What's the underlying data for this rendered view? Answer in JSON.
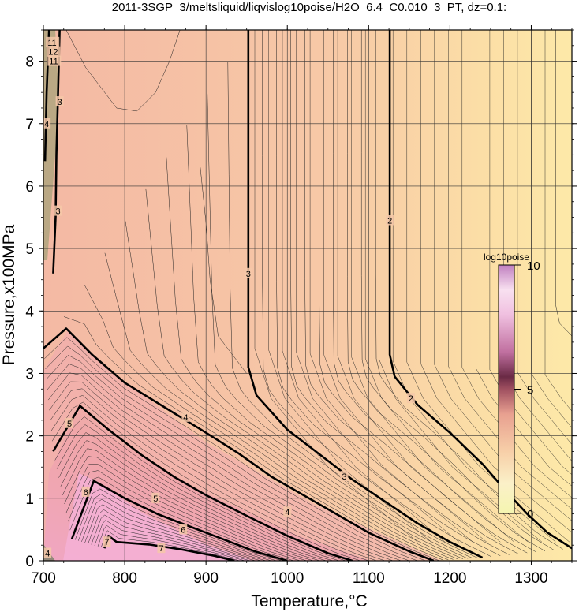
{
  "chart_data": {
    "type": "heatmap",
    "title": "2011-3SGP_3/meltsliquid/liqvislog10poise/H2O_6.4_C0.010_3_PT, dz=0.1:",
    "xlabel": "Temperature,°C",
    "ylabel": "Pressure,x100MPa",
    "xlim": [
      700,
      1350
    ],
    "ylim": [
      0,
      8.5
    ],
    "xticks": [
      700,
      800,
      900,
      1000,
      1100,
      1200,
      1300
    ],
    "yticks": [
      0,
      1,
      2,
      3,
      4,
      5,
      6,
      7,
      8
    ],
    "grid": true,
    "colorbar": {
      "label": "log10poise",
      "range": [
        0,
        10
      ],
      "ticks": [
        0,
        5,
        10
      ],
      "placement": "right-inside"
    },
    "contour_interval": 0.1,
    "major_contours": [
      {
        "level": 2,
        "points": [
          [
            1126,
            8.5
          ],
          [
            1126,
            3.3
          ],
          [
            1132,
            2.95
          ],
          [
            1160,
            2.5
          ],
          [
            1200,
            2.05
          ],
          [
            1240,
            1.55
          ],
          [
            1270,
            1.1
          ],
          [
            1295,
            0.75
          ],
          [
            1320,
            0.45
          ],
          [
            1350,
            0.2
          ]
        ]
      },
      {
        "level": 3,
        "points": [
          [
            952,
            8.5
          ],
          [
            952,
            3.1
          ],
          [
            962,
            2.65
          ],
          [
            1000,
            2.1
          ],
          [
            1040,
            1.7
          ],
          [
            1080,
            1.3
          ],
          [
            1120,
            0.95
          ],
          [
            1160,
            0.6
          ],
          [
            1200,
            0.3
          ],
          [
            1240,
            0.05
          ]
        ]
      },
      {
        "level": 4,
        "points": [
          [
            700,
            3.4
          ],
          [
            728,
            3.72
          ],
          [
            760,
            3.3
          ],
          [
            800,
            2.85
          ],
          [
            850,
            2.45
          ],
          [
            900,
            2.05
          ],
          [
            940,
            1.72
          ],
          [
            980,
            1.35
          ],
          [
            1020,
            1.05
          ],
          [
            1060,
            0.75
          ],
          [
            1100,
            0.45
          ],
          [
            1150,
            0.15
          ],
          [
            1180,
            0.0
          ]
        ]
      },
      {
        "level": 5,
        "points": [
          [
            712,
            1.75
          ],
          [
            745,
            2.48
          ],
          [
            780,
            2.1
          ],
          [
            820,
            1.7
          ],
          [
            860,
            1.35
          ],
          [
            900,
            1.05
          ],
          [
            950,
            0.72
          ],
          [
            1000,
            0.4
          ],
          [
            1050,
            0.12
          ],
          [
            1080,
            0.0
          ]
        ]
      },
      {
        "level": 6,
        "points": [
          [
            735,
            0.35
          ],
          [
            762,
            1.28
          ],
          [
            800,
            1.0
          ],
          [
            840,
            0.75
          ],
          [
            880,
            0.55
          ],
          [
            920,
            0.35
          ],
          [
            960,
            0.15
          ],
          [
            1000,
            0.0
          ]
        ]
      },
      {
        "level": 7,
        "points": [
          [
            775,
            0.2
          ],
          [
            780,
            0.4
          ],
          [
            790,
            0.3
          ],
          [
            830,
            0.26
          ],
          [
            870,
            0.18
          ],
          [
            910,
            0.08
          ],
          [
            935,
            0.0
          ]
        ]
      },
      {
        "level": 3,
        "points": [
          [
            712,
            4.6
          ],
          [
            715,
            5.5
          ],
          [
            716,
            6.5
          ],
          [
            718,
            7.5
          ],
          [
            720,
            8.5
          ]
        ]
      },
      {
        "level": 4,
        "points": [
          [
            702,
            6.4
          ],
          [
            704,
            7.5
          ],
          [
            707,
            8.5
          ]
        ]
      }
    ],
    "contour_labels": [
      {
        "text": "2",
        "x": 1126,
        "y": 5.45
      },
      {
        "text": "2",
        "x": 1152,
        "y": 2.6
      },
      {
        "text": "3",
        "x": 952,
        "y": 4.6
      },
      {
        "text": "3",
        "x": 1070,
        "y": 1.35
      },
      {
        "text": "3",
        "x": 718,
        "y": 5.6
      },
      {
        "text": "3",
        "x": 720,
        "y": 7.35
      },
      {
        "text": "4",
        "x": 875,
        "y": 2.3
      },
      {
        "text": "4",
        "x": 1000,
        "y": 0.78
      },
      {
        "text": "4",
        "x": 704,
        "y": 7.0
      },
      {
        "text": "4",
        "x": 705,
        "y": 0.12
      },
      {
        "text": "5",
        "x": 732,
        "y": 2.2
      },
      {
        "text": "5",
        "x": 838,
        "y": 1.0
      },
      {
        "text": "6",
        "x": 752,
        "y": 1.1
      },
      {
        "text": "6",
        "x": 872,
        "y": 0.5
      },
      {
        "text": "7",
        "x": 778,
        "y": 0.3
      },
      {
        "text": "7",
        "x": 845,
        "y": 0.2
      },
      {
        "text": "11",
        "x": 708,
        "y": 8.3
      },
      {
        "text": "12",
        "x": 709,
        "y": 8.15
      },
      {
        "text": "11",
        "x": 710,
        "y": 8.0
      }
    ]
  }
}
